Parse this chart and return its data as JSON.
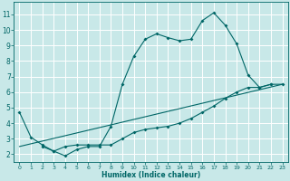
{
  "xlabel": "Humidex (Indice chaleur)",
  "bg_color": "#c8e8e8",
  "grid_color": "#ffffff",
  "line_color": "#006666",
  "xlim": [
    -0.5,
    23.5
  ],
  "ylim": [
    1.5,
    11.8
  ],
  "xticks": [
    0,
    1,
    2,
    3,
    4,
    5,
    6,
    7,
    8,
    9,
    10,
    11,
    12,
    13,
    14,
    15,
    16,
    17,
    18,
    19,
    20,
    21,
    22,
    23
  ],
  "yticks": [
    2,
    3,
    4,
    5,
    6,
    7,
    8,
    9,
    10,
    11
  ],
  "line1_x": [
    0,
    1,
    2,
    3,
    4,
    5,
    6,
    7,
    8,
    9,
    10,
    11,
    12,
    13,
    14,
    15,
    16,
    17,
    18,
    19,
    20,
    21,
    22
  ],
  "line1_y": [
    4.7,
    3.1,
    2.6,
    2.2,
    1.9,
    2.3,
    2.5,
    2.5,
    3.8,
    6.5,
    8.3,
    9.4,
    9.75,
    9.5,
    9.3,
    9.4,
    10.6,
    11.1,
    10.3,
    9.1,
    7.1,
    6.3,
    6.5
  ],
  "line2_x": [
    2,
    3,
    4,
    5,
    6,
    7,
    8,
    9,
    10,
    11,
    12,
    13,
    14,
    15,
    16,
    17,
    18,
    19,
    20,
    21,
    22,
    23
  ],
  "line2_y": [
    2.5,
    2.2,
    2.5,
    2.6,
    2.6,
    2.6,
    2.6,
    3.0,
    3.4,
    3.6,
    3.7,
    3.8,
    4.0,
    4.3,
    4.7,
    5.1,
    5.6,
    6.0,
    6.3,
    6.3,
    6.5,
    6.5
  ],
  "line3_x": [
    0,
    23
  ],
  "line3_y": [
    2.5,
    6.5
  ]
}
